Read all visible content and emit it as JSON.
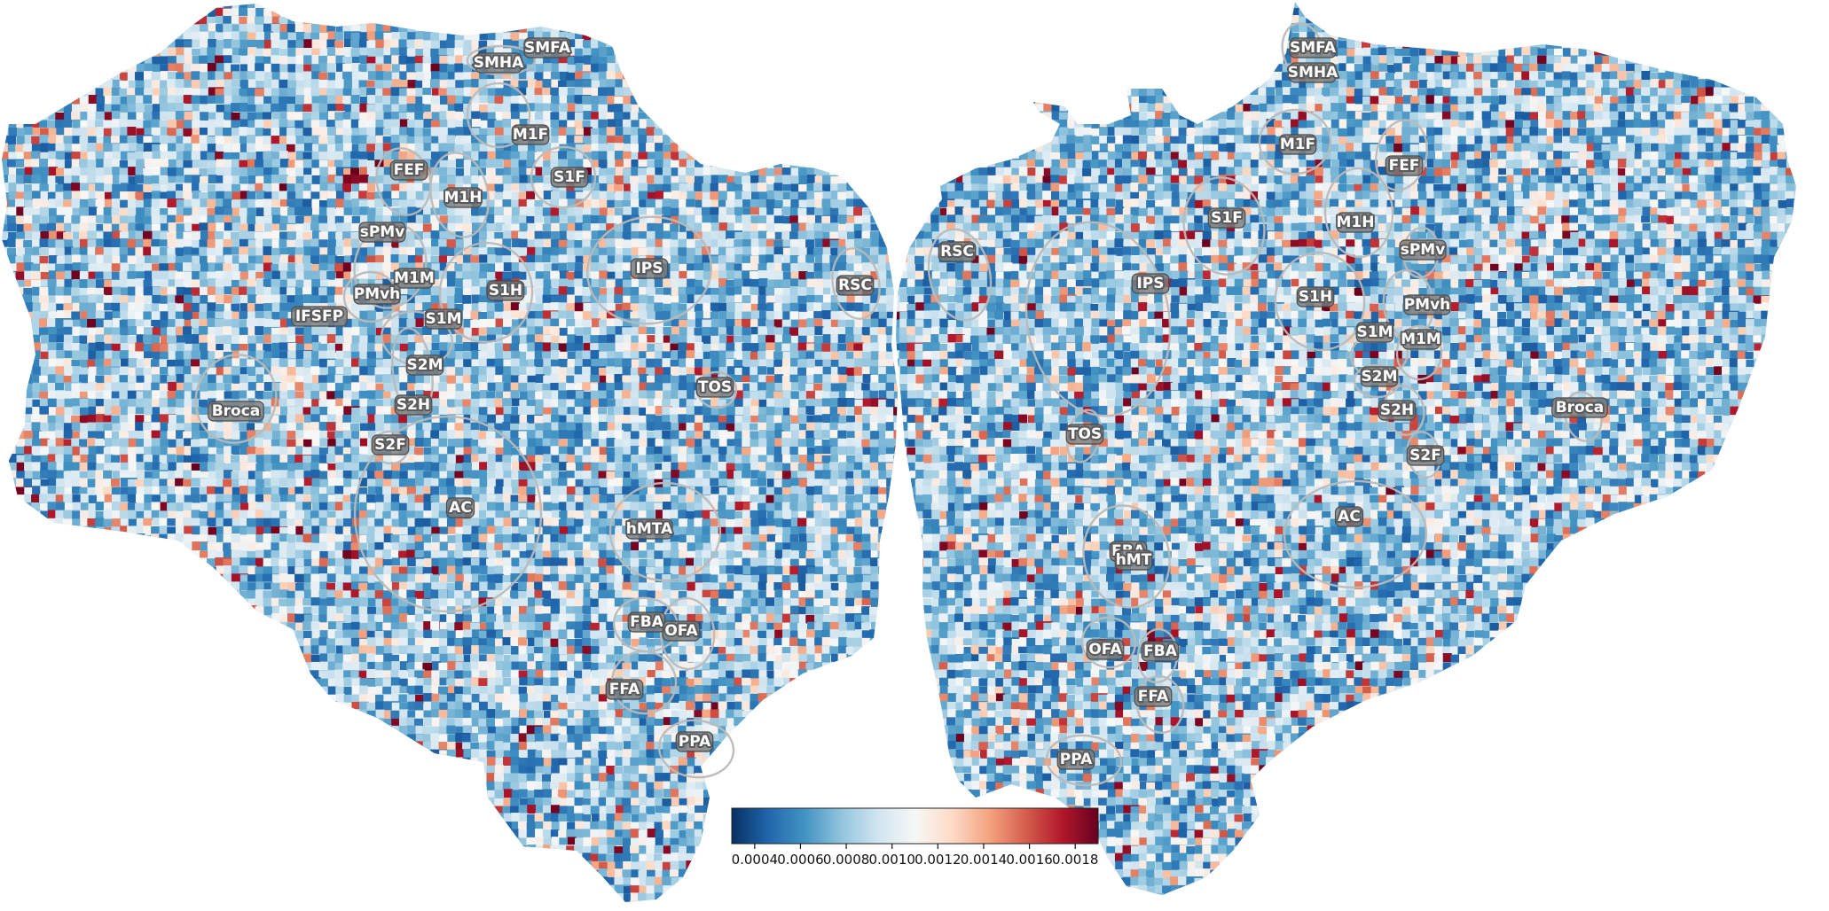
{
  "figure": {
    "colormap": [
      "#053061",
      "#2166ac",
      "#4393c3",
      "#92c5de",
      "#d1e5f0",
      "#f7f7f7",
      "#fddbc7",
      "#f4a582",
      "#d6604d",
      "#b2182b",
      "#67001f"
    ],
    "background": "#ffffff",
    "outline_color": "#bdbdbd"
  },
  "colorbar": {
    "vmin": 0.0003,
    "vmax": 0.0019,
    "ticks": [
      "0.0004",
      "0.0006",
      "0.0008",
      "0.0010",
      "0.0012",
      "0.0014",
      "0.0016",
      "0.0018"
    ]
  },
  "left_hemisphere": {
    "labels": [
      "SMFA",
      "SMHA",
      "M1F",
      "FEF",
      "M1H",
      "S1F",
      "sPMv",
      "IPS",
      "RSC",
      "M1M",
      "PMvh",
      "S1H",
      "IFSFP",
      "S1M",
      "S2M",
      "TOS",
      "Broca",
      "S2H",
      "S2F",
      "AC",
      "hMTA",
      "FBA",
      "OFA",
      "FFA",
      "PPA"
    ]
  },
  "right_hemisphere": {
    "labels": [
      "SMFA",
      "SMHA",
      "M1F",
      "FEF",
      "S1F",
      "M1H",
      "sPMv",
      "RSC",
      "IPS",
      "S1H",
      "PMvh",
      "S1M",
      "M1M",
      "S2M",
      "S2H",
      "Broca",
      "TOS",
      "S2F",
      "AC",
      "FBA",
      "hMT",
      "OFA",
      "FBA",
      "FFA",
      "PPA"
    ]
  }
}
